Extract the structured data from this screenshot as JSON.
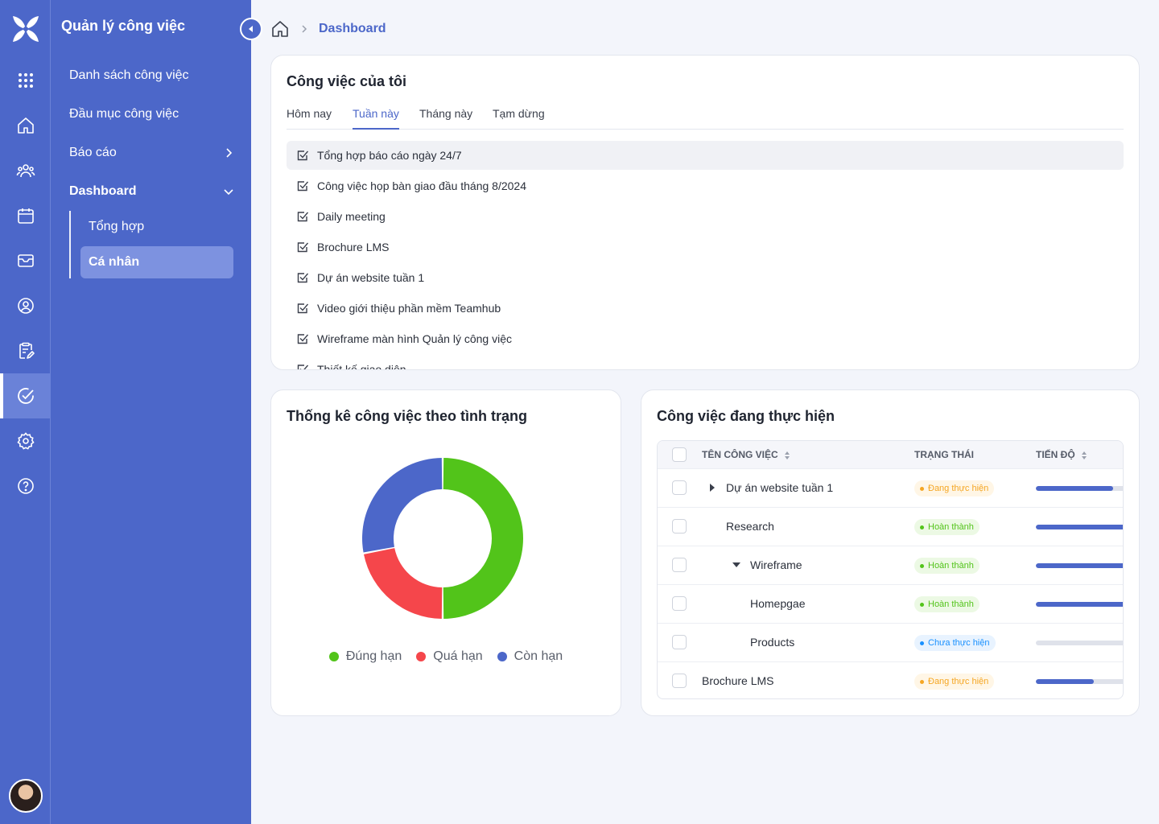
{
  "sidebar": {
    "app_title": "Quản lý công việc",
    "items": [
      {
        "label": "Danh sách công việc"
      },
      {
        "label": "Đầu mục công việc"
      },
      {
        "label": "Báo cáo"
      },
      {
        "label": "Dashboard"
      }
    ],
    "subitems": [
      {
        "label": "Tổng hợp"
      },
      {
        "label": "Cá nhân"
      }
    ]
  },
  "breadcrumb": {
    "current": "Dashboard"
  },
  "my_tasks": {
    "title": "Công việc của tôi",
    "tabs": [
      "Hôm nay",
      "Tuần này",
      "Tháng này",
      "Tạm dừng"
    ],
    "active_tab": "Tuần này",
    "items": [
      "Tổng hợp báo cáo ngày 24/7",
      "Công việc họp bàn giao đầu tháng 8/2024",
      "Daily meeting",
      "Brochure LMS",
      "Dự án website tuần 1",
      "Video giới thiệu phần mềm Teamhub",
      "Wireframe màn hình Quản lý công việc",
      "Thiết kế giao diện"
    ]
  },
  "status_stats": {
    "title": "Thống kê công việc theo tình trạng"
  },
  "chart_data": {
    "type": "pie",
    "donut": true,
    "categories": [
      "Đúng hạn",
      "Quá hạn",
      "Còn hạn"
    ],
    "values": [
      50,
      22,
      28
    ],
    "colors": [
      "#52c41a",
      "#f5464b",
      "#4c67c9"
    ],
    "legend": "bottom"
  },
  "in_progress": {
    "title": "Công việc đang thực hiện",
    "columns": [
      "TÊN CÔNG VIỆC",
      "TRẠNG THÁI",
      "TIẾN ĐỘ"
    ],
    "rows": [
      {
        "name": "Dự án website tuần 1",
        "status": "Đang thực hiện",
        "status_color": "#f5a623",
        "progress": 0.8,
        "toggle": "collapsed",
        "level": 1
      },
      {
        "name": "Research",
        "status": "Hoàn thành",
        "status_color": "#52c41a",
        "progress": 1.0,
        "toggle": "none",
        "level": 1
      },
      {
        "name": "Wireframe",
        "status": "Hoàn thành",
        "status_color": "#52c41a",
        "progress": 1.0,
        "toggle": "expanded",
        "level": 2
      },
      {
        "name": "Homepgae",
        "status": "Hoàn thành",
        "status_color": "#52c41a",
        "progress": 1.0,
        "toggle": "none",
        "level": 2
      },
      {
        "name": "Products",
        "status": "Chưa thực hiện",
        "status_color": "#1890ff",
        "progress": 0.0,
        "toggle": "none",
        "level": 2
      },
      {
        "name": "Brochure LMS",
        "status": "Đang thực hiện",
        "status_color": "#f5a623",
        "progress": 0.6,
        "toggle": "none",
        "level": 0
      }
    ]
  },
  "icons": [
    "logo-icon",
    "apps-grid-icon",
    "home-icon",
    "users-icon",
    "calendar-icon",
    "inbox-icon",
    "user-circle-icon",
    "clipboard-edit-icon",
    "check-circle-icon",
    "settings-icon",
    "help-icon"
  ],
  "colors": {
    "brand": "#4c67c9",
    "success": "#52c41a",
    "danger": "#f5464b",
    "warning": "#f5a623",
    "info": "#1890ff"
  }
}
